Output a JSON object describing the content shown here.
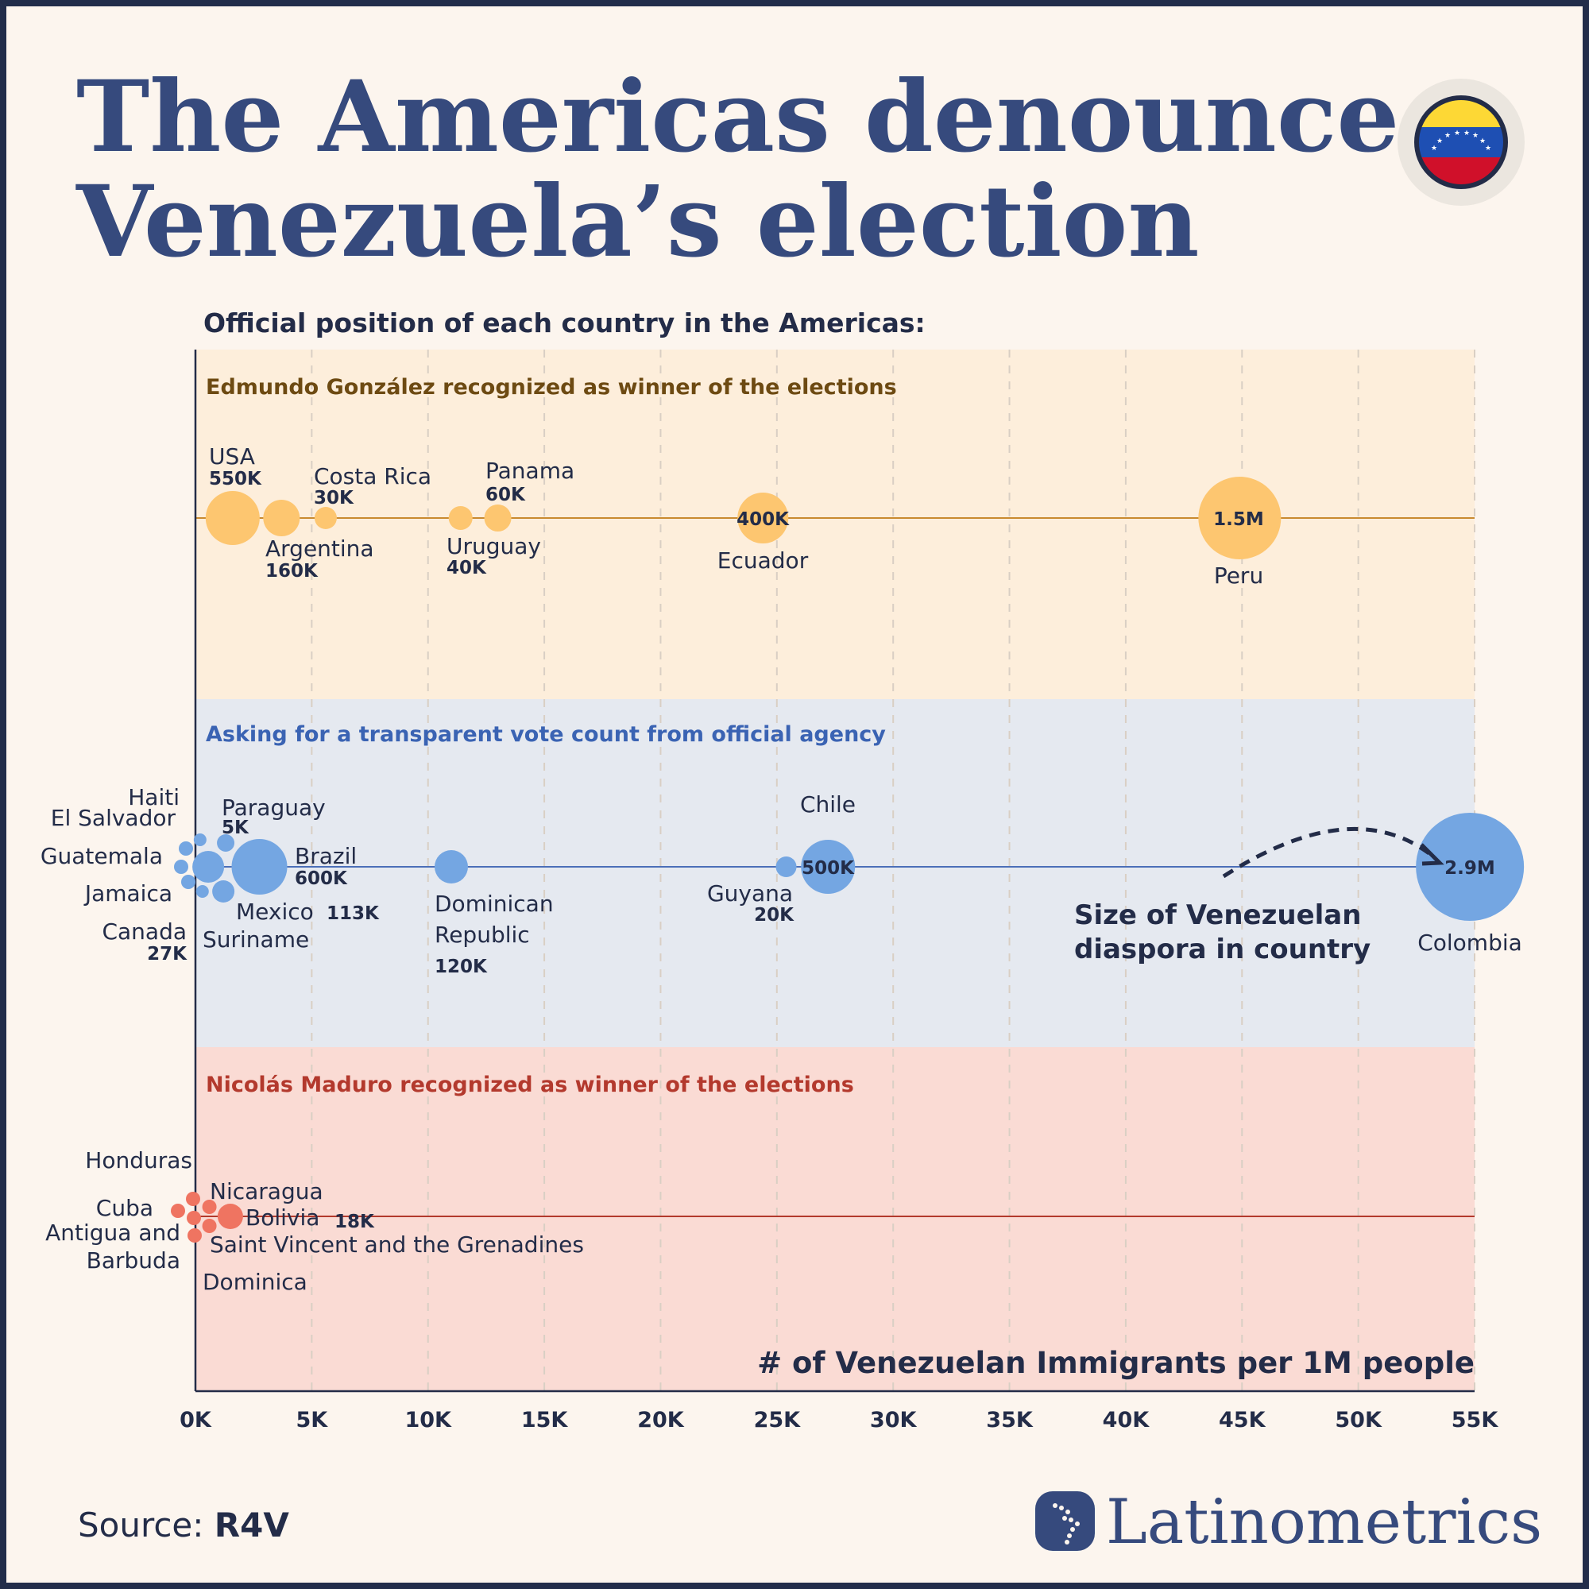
{
  "title_line1": "The Americas denounce",
  "title_line2": "Venezuela’s election",
  "subtitle": "Official position of each country in the Americas:",
  "source_label": "Source:",
  "source_value": "R4V",
  "brand": "Latinometrics",
  "icons": {
    "flag": "venezuela-flag-icon",
    "logo": "latinometrics-map-icon"
  },
  "colors": {
    "title": "#364a7d",
    "text": "#232c48",
    "background": "#fcf5ee",
    "gonzalez": {
      "band": "#fdeedb",
      "dot": "#fdc670",
      "line": "#c98a2f",
      "title": "#6d4a12"
    },
    "transparent": {
      "band": "#e5e9f0",
      "dot": "#74a6e2",
      "line": "#4b6fb8",
      "title": "#3a63b3"
    },
    "maduro": {
      "band": "#fadbd4",
      "dot": "#ef7461",
      "line": "#b2392c",
      "title": "#b3392d"
    }
  },
  "chart_data": {
    "type": "scatter",
    "subtype": "beeswarm bubble strip",
    "xlabel": "# of Venezuelan Immigrants per 1M people",
    "xlim": [
      0,
      55000
    ],
    "x_ticks": [
      "0K",
      "5K",
      "10K",
      "15K",
      "20K",
      "25K",
      "30K",
      "35K",
      "40K",
      "45K",
      "50K",
      "55K"
    ],
    "grid": "vertical dashed",
    "bubble_size_legend": "Size of Venezuelan diaspora in country",
    "groups": [
      {
        "title": "Edmundo González recognized as winner of the elections",
        "countries": [
          {
            "name": "USA",
            "per_1m": 1600,
            "diaspora": "550K"
          },
          {
            "name": "Argentina",
            "per_1m": 3700,
            "diaspora": "160K"
          },
          {
            "name": "Costa Rica",
            "per_1m": 5600,
            "diaspora": "30K"
          },
          {
            "name": "Uruguay",
            "per_1m": 11400,
            "diaspora": "40K"
          },
          {
            "name": "Panama",
            "per_1m": 13000,
            "diaspora": "60K"
          },
          {
            "name": "Ecuador",
            "per_1m": 24400,
            "diaspora": "400K"
          },
          {
            "name": "Peru",
            "per_1m": 44900,
            "diaspora": "1.5M"
          }
        ]
      },
      {
        "title": "Asking for a transparent vote count from official agency",
        "countries": [
          {
            "name": "Haiti",
            "per_1m": 200
          },
          {
            "name": "El Salvador",
            "per_1m": 0
          },
          {
            "name": "Guatemala",
            "per_1m": 0
          },
          {
            "name": "Jamaica",
            "per_1m": 0
          },
          {
            "name": "Canada",
            "per_1m": 300,
            "diaspora": "27K"
          },
          {
            "name": "Suriname",
            "per_1m": 1200
          },
          {
            "name": "Paraguay",
            "per_1m": 1300,
            "diaspora": "5K"
          },
          {
            "name": "Mexico",
            "per_1m": 550,
            "diaspora": "113K"
          },
          {
            "name": "Brazil",
            "per_1m": 2750,
            "diaspora": "600K"
          },
          {
            "name": "Dominican Republic",
            "name_line1": "Dominican",
            "name_line2": "Republic",
            "per_1m": 11000,
            "diaspora": "120K"
          },
          {
            "name": "Guyana",
            "per_1m": 25400,
            "diaspora": "20K"
          },
          {
            "name": "Chile",
            "per_1m": 27200,
            "diaspora": "500K"
          },
          {
            "name": "Colombia",
            "per_1m": 54800,
            "diaspora": "2.9M"
          }
        ]
      },
      {
        "title": "Nicolás Maduro recognized as winner of the elections",
        "countries": [
          {
            "name": "Honduras",
            "per_1m": 0
          },
          {
            "name": "Cuba",
            "per_1m": 0
          },
          {
            "name": "Nicaragua",
            "per_1m": 600
          },
          {
            "name": "Antigua and Barbuda",
            "name_line1": "Antigua and",
            "name_line2": "Barbuda",
            "per_1m": 0
          },
          {
            "name": "Saint Vincent and the Grenadines",
            "per_1m": 600
          },
          {
            "name": "Dominica",
            "per_1m": 0
          },
          {
            "name": "Bolivia",
            "per_1m": 1500,
            "diaspora": "18K"
          }
        ]
      }
    ]
  }
}
